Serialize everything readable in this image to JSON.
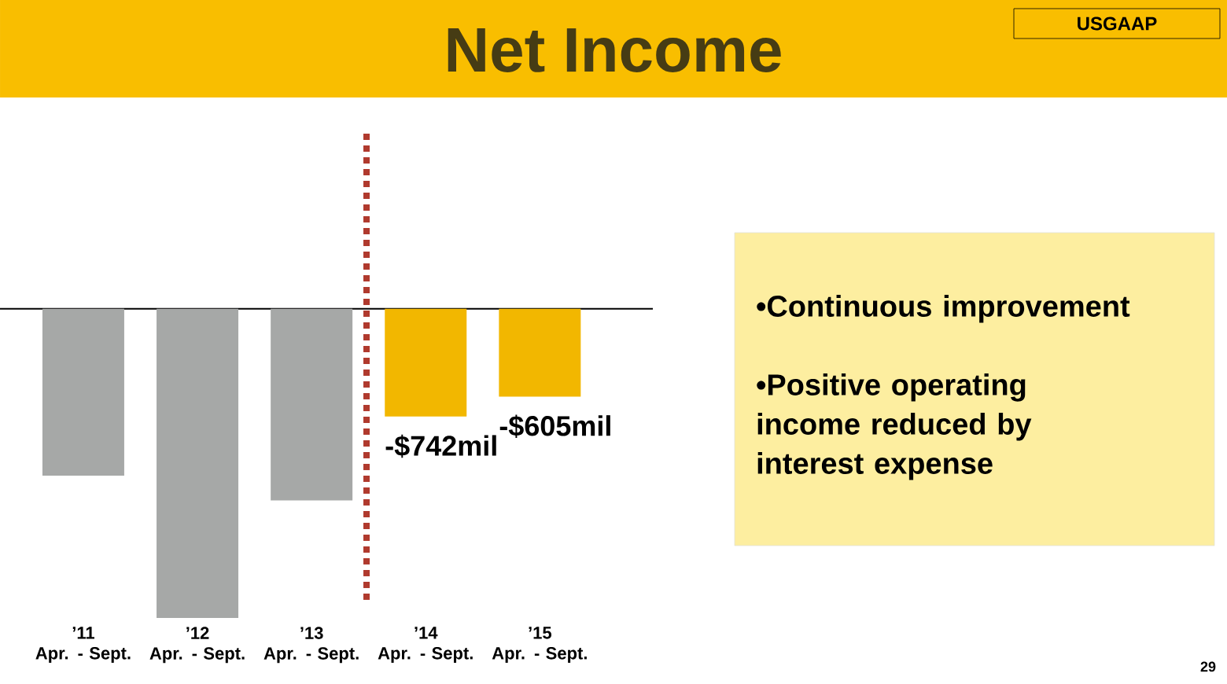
{
  "chart_data": {
    "type": "bar",
    "title": "Net Income",
    "categories": [
      "’11 Apr. - Sept.",
      "’12 Apr. - Sept.",
      "’13 Apr. - Sept.",
      "’14 Apr. - Sept.",
      "’15 Apr. - Sept."
    ],
    "values": [
      -1150,
      -2130,
      -1320,
      -742,
      -605
    ],
    "colors": [
      "#a6a8a7",
      "#a6a8a7",
      "#a6a8a7",
      "#f2b700",
      "#f2b700"
    ],
    "value_labels": [
      null,
      null,
      null,
      "-$742mil",
      "-$605mil"
    ],
    "annotations": [
      "USGAAP",
      "•Continuous improvement",
      "•Positive operating income reduced by interest expense",
      "29"
    ]
  }
}
